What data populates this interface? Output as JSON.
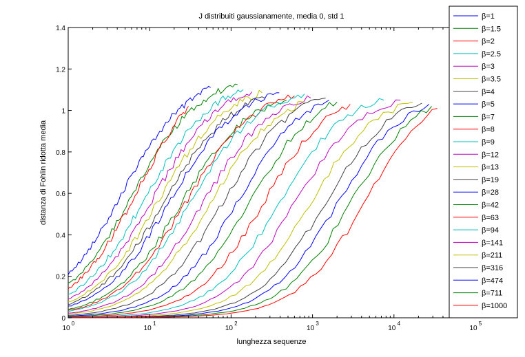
{
  "chart_data": {
    "type": "line",
    "title": "J distribuiti gaussianamente, media 0, std 1",
    "xlabel": "lunghezza sequenze",
    "ylabel": "distanza di Fohlin ridotta media",
    "xscale": "log",
    "xlim": [
      1,
      100000
    ],
    "ylim": [
      0,
      1.4
    ],
    "x_ticks": [
      {
        "value": 1,
        "base": "10",
        "exp": "0"
      },
      {
        "value": 10,
        "base": "10",
        "exp": "1"
      },
      {
        "value": 100,
        "base": "10",
        "exp": "2"
      },
      {
        "value": 1000,
        "base": "10",
        "exp": "3"
      },
      {
        "value": 10000,
        "base": "10",
        "exp": "4"
      },
      {
        "value": 100000,
        "base": "10",
        "exp": "5"
      }
    ],
    "y_ticks": [
      {
        "value": 0,
        "label": "0"
      },
      {
        "value": 0.2,
        "label": "0.2"
      },
      {
        "value": 0.4,
        "label": "0.4"
      },
      {
        "value": 0.6,
        "label": "0.6"
      },
      {
        "value": 0.8,
        "label": "0.8"
      },
      {
        "value": 1,
        "label": "1"
      },
      {
        "value": 1.2,
        "label": "1.2"
      },
      {
        "value": 1.4,
        "label": "1.4"
      }
    ],
    "grid": false,
    "legend_position": "top-right",
    "legend_symbol": "β",
    "series": [
      {
        "name": "=1",
        "color": "#0000ff",
        "end_x": 56,
        "end_y": 1.11,
        "mid_x": 4.5
      },
      {
        "name": "=1.5",
        "color": "#008000",
        "end_x": 120,
        "end_y": 1.125,
        "mid_x": 6.0
      },
      {
        "name": "=2",
        "color": "#ff0000",
        "end_x": 30,
        "end_y": 1.02,
        "mid_x": 7.5
      },
      {
        "name": "=2.5",
        "color": "#00bfbf",
        "end_x": 140,
        "end_y": 1.1,
        "mid_x": 9.0
      },
      {
        "name": "=3",
        "color": "#bf00bf",
        "end_x": 180,
        "end_y": 1.09,
        "mid_x": 11
      },
      {
        "name": "=3.5",
        "color": "#bfbf00",
        "end_x": 240,
        "end_y": 1.085,
        "mid_x": 13
      },
      {
        "name": "=4",
        "color": "#404040",
        "end_x": 260,
        "end_y": 1.06,
        "mid_x": 15
      },
      {
        "name": "=5",
        "color": "#0000ff",
        "end_x": 390,
        "end_y": 1.085,
        "mid_x": 18
      },
      {
        "name": "=7",
        "color": "#008000",
        "end_x": 480,
        "end_y": 1.05,
        "mid_x": 24
      },
      {
        "name": "=8",
        "color": "#ff0000",
        "end_x": 600,
        "end_y": 1.07,
        "mid_x": 28
      },
      {
        "name": "=9",
        "color": "#00bfbf",
        "end_x": 800,
        "end_y": 1.08,
        "mid_x": 32
      },
      {
        "name": "=12",
        "color": "#bf00bf",
        "end_x": 950,
        "end_y": 1.06,
        "mid_x": 45
      },
      {
        "name": "=13",
        "color": "#bfbf00",
        "end_x": 800,
        "end_y": 1.04,
        "mid_x": 55
      },
      {
        "name": "=19",
        "color": "#404040",
        "end_x": 1450,
        "end_y": 1.06,
        "mid_x": 80
      },
      {
        "name": "=28",
        "color": "#0000ff",
        "end_x": 1600,
        "end_y": 1.05,
        "mid_x": 120
      },
      {
        "name": "=42",
        "color": "#008000",
        "end_x": 2000,
        "end_y": 1.04,
        "mid_x": 170
      },
      {
        "name": "=63",
        "color": "#ff0000",
        "end_x": 2900,
        "end_y": 1.03,
        "mid_x": 250
      },
      {
        "name": "=94",
        "color": "#00bfbf",
        "end_x": 7500,
        "end_y": 1.05,
        "mid_x": 380
      },
      {
        "name": "=141",
        "color": "#bf00bf",
        "end_x": 12000,
        "end_y": 1.05,
        "mid_x": 600
      },
      {
        "name": "=211",
        "color": "#bfbf00",
        "end_x": 17000,
        "end_y": 1.04,
        "mid_x": 900
      },
      {
        "name": "=316",
        "color": "#404040",
        "end_x": 22000,
        "end_y": 1.035,
        "mid_x": 1400
      },
      {
        "name": "=474",
        "color": "#0000ff",
        "end_x": 27000,
        "end_y": 1.03,
        "mid_x": 2000
      },
      {
        "name": "=711",
        "color": "#008000",
        "end_x": 29000,
        "end_y": 1.02,
        "mid_x": 3000
      },
      {
        "name": "=1000",
        "color": "#ff0000",
        "end_x": 34000,
        "end_y": 1.01,
        "mid_x": 4500
      }
    ]
  }
}
